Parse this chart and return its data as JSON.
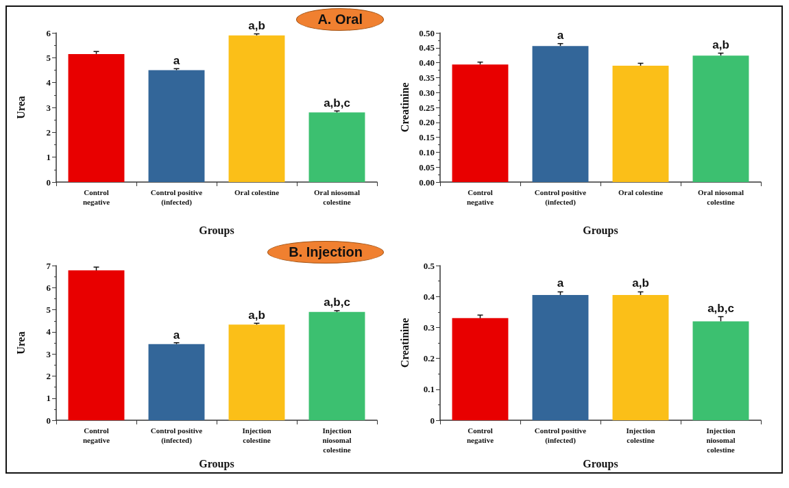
{
  "chart_data": [
    {
      "type": "bar",
      "title": "A. Oral",
      "xlabel": "Groups",
      "ylabel": "Urea",
      "categories": [
        "Control\nnegative",
        "Control positive\n(infected)",
        "Oral colestine",
        "Oral niosomal\ncolestine"
      ],
      "values": [
        5.15,
        4.5,
        5.9,
        2.8
      ],
      "errors": [
        0.1,
        0.06,
        0.06,
        0.06
      ],
      "colors": [
        "#e80000",
        "#336699",
        "#fbbf18",
        "#3cc070"
      ],
      "ylim": [
        0,
        6
      ],
      "yticks": [
        0,
        1,
        2,
        3,
        4,
        5,
        6
      ],
      "grid": false,
      "annotations": [
        {
          "text": "a",
          "x": "Control positive\n(infected)",
          "y": 4.53
        },
        {
          "text": "a,b",
          "x": "Oral colestine",
          "y": 5.95
        },
        {
          "text": "a,b,c",
          "x": "Oral niosomal\ncolestine",
          "y": 2.83
        }
      ]
    },
    {
      "type": "bar",
      "xlabel": "Groups",
      "ylabel": "Creatinine",
      "categories": [
        "Control\nnegative",
        "Control positive\n(infected)",
        "Oral colestine",
        "Oral niosomal\ncolestine"
      ],
      "values": [
        0.394,
        0.456,
        0.39,
        0.424
      ],
      "errors": [
        0.008,
        0.008,
        0.008,
        0.008
      ],
      "colors": [
        "#e80000",
        "#336699",
        "#fbbf18",
        "#3cc070"
      ],
      "ylim": [
        0,
        0.5
      ],
      "yticks": [
        {
          "value": 0,
          "label": "0.00"
        },
        {
          "value": 0.05,
          "label": "0.05"
        },
        {
          "value": 0.1,
          "label": "0.10"
        },
        {
          "value": 0.15,
          "label": "0.15"
        },
        {
          "value": 0.2,
          "label": "0.20"
        },
        {
          "value": 0.25,
          "label": "0.25"
        },
        {
          "value": 0.3,
          "label": "0.30"
        },
        {
          "value": 0.35,
          "label": "0.35"
        },
        {
          "value": 0.4,
          "label": "0.40"
        },
        {
          "value": 0.45,
          "label": "0.45"
        },
        {
          "value": 0.5,
          "label": "0.50"
        }
      ],
      "grid": false,
      "annotations": [
        {
          "text": "a",
          "x": "Control positive\n(infected)",
          "y": 0.464
        },
        {
          "text": "a,b",
          "x": "Oral niosomal\ncolestine",
          "y": 0.432
        }
      ]
    },
    {
      "type": "bar",
      "title": "B. Injection",
      "xlabel": "Groups",
      "ylabel": "Urea",
      "categories": [
        "Control\nnegative",
        "Control positive\n(infected)",
        "Injection\ncolestine",
        "Injection\nniosomal\ncolestine"
      ],
      "values": [
        6.78,
        3.45,
        4.33,
        4.9
      ],
      "errors": [
        0.15,
        0.06,
        0.06,
        0.06
      ],
      "colors": [
        "#e80000",
        "#336699",
        "#fbbf18",
        "#3cc070"
      ],
      "ylim": [
        0,
        7
      ],
      "yticks": [
        0,
        1,
        2,
        3,
        4,
        5,
        6,
        7
      ],
      "grid": false,
      "annotations": [
        {
          "text": "a",
          "x": "Control positive\n(infected)",
          "y": 3.48
        },
        {
          "text": "a,b",
          "x": "Injection\ncolestine",
          "y": 4.36
        },
        {
          "text": "a,b,c",
          "x": "Injection\nniosomal\ncolestine",
          "y": 4.95
        }
      ]
    },
    {
      "type": "bar",
      "xlabel": "Groups",
      "ylabel": "Creatinine",
      "categories": [
        "Control\nnegative",
        "Control positive\n(infected)",
        "Injection\ncolestine",
        "Injection\nniosomal\ncolestine"
      ],
      "values": [
        0.33,
        0.405,
        0.405,
        0.32
      ],
      "errors": [
        0.01,
        0.01,
        0.01,
        0.015
      ],
      "colors": [
        "#e80000",
        "#336699",
        "#fbbf18",
        "#3cc070"
      ],
      "ylim": [
        0,
        0.5
      ],
      "yticks": [
        0,
        0.1,
        0.2,
        0.3,
        0.4,
        0.5
      ],
      "grid": false,
      "annotations": [
        {
          "text": "a",
          "x": "Control positive\n(infected)",
          "y": 0.415
        },
        {
          "text": "a,b",
          "x": "Injection\ncolestine",
          "y": 0.415
        },
        {
          "text": "a,b,c",
          "x": "Injection\nniosomal\ncolestine",
          "y": 0.335
        }
      ]
    }
  ]
}
